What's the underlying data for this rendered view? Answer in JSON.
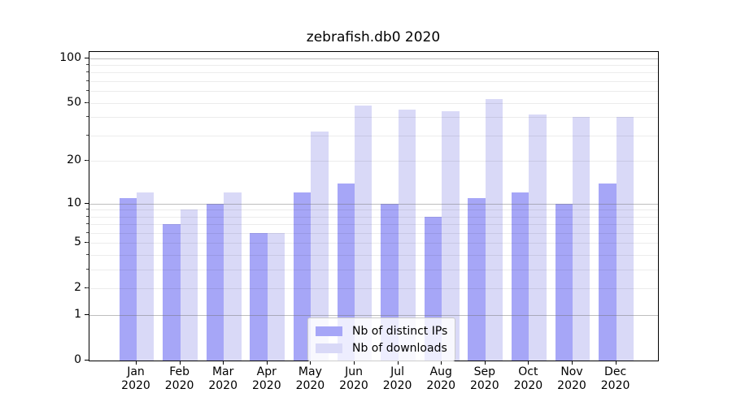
{
  "title": "zebrafish.db0 2020",
  "chart_data": {
    "type": "bar",
    "title": "zebrafish.db0 2020",
    "categories": [
      "Jan 2020",
      "Feb 2020",
      "Mar 2020",
      "Apr 2020",
      "May 2020",
      "Jun 2020",
      "Jul 2020",
      "Aug 2020",
      "Sep 2020",
      "Oct 2020",
      "Nov 2020",
      "Dec 2020"
    ],
    "series": [
      {
        "name": "Nb of distinct IPs",
        "color": "#a6a6f7",
        "values": [
          11,
          7,
          10,
          6,
          12,
          14,
          10,
          8,
          11,
          12,
          10,
          14
        ]
      },
      {
        "name": "Nb of downloads",
        "color": "#d9d9f7",
        "values": [
          12,
          9,
          12,
          6,
          32,
          48,
          45,
          44,
          53,
          42,
          40,
          40
        ]
      }
    ],
    "xlabel": "",
    "ylabel": "",
    "yscale": "log1p",
    "ylim": [
      0,
      109
    ],
    "yticks": [
      0,
      1,
      2,
      5,
      10,
      20,
      50,
      100
    ],
    "major_gridlines": [
      1,
      10,
      100
    ],
    "minor_gridlines": [
      2,
      3,
      4,
      5,
      6,
      7,
      8,
      9,
      20,
      30,
      40,
      50,
      60,
      70,
      80,
      90
    ],
    "grid": true,
    "legend_position": "lower center"
  },
  "colors": {
    "background": "#ffffff",
    "spine": "#000000",
    "major_grid": "#c0c0c0",
    "minor_grid": "#ececec",
    "ips_bar": "#a6a6f7",
    "downloads_bar": "#d9d9f7"
  }
}
